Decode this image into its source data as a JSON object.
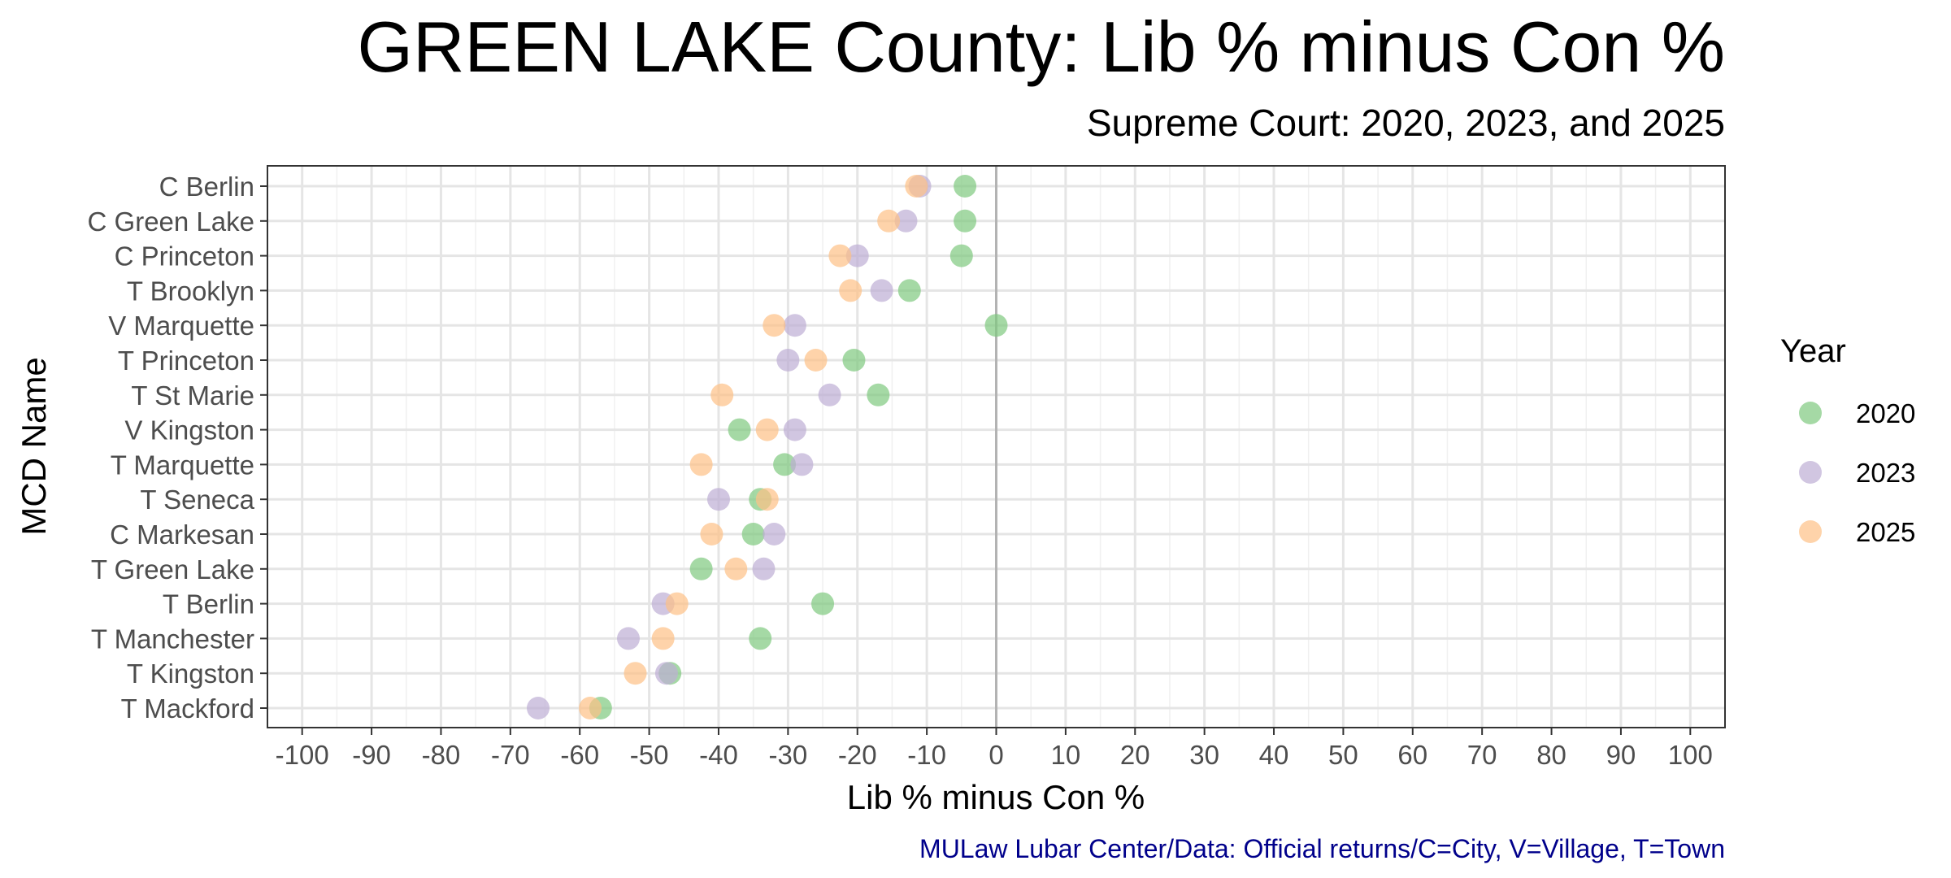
{
  "chart_data": {
    "type": "scatter",
    "title": "GREEN LAKE County: Lib % minus Con %",
    "subtitle": "Supreme Court: 2020, 2023, and 2025",
    "xlabel": "Lib % minus Con %",
    "ylabel": "MCD Name",
    "caption": "MULaw Lubar Center/Data: Official returns/C=City, V=Village, T=Town",
    "caption_color": "#00008B",
    "xlim": [
      -105,
      105
    ],
    "x_ticks": [
      -100,
      -90,
      -80,
      -70,
      -60,
      -50,
      -40,
      -30,
      -20,
      -10,
      0,
      10,
      20,
      30,
      40,
      50,
      60,
      70,
      80,
      90,
      100
    ],
    "x_tick_labels": [
      "-100",
      "-90",
      "-80",
      "-70",
      "-60",
      "-50",
      "-40",
      "-30",
      "-20",
      "-10",
      "0",
      "10",
      "20",
      "30",
      "40",
      "50",
      "60",
      "70",
      "80",
      "90",
      "100"
    ],
    "grid": true,
    "reference_line_x": 0,
    "legend_title": "Year",
    "legend_position": "right",
    "categories": [
      "C Berlin",
      "C Green Lake",
      "C Princeton",
      "T Brooklyn",
      "V Marquette",
      "T Princeton",
      "T St Marie",
      "V Kingston",
      "T Marquette",
      "T Seneca",
      "C Markesan",
      "T Green Lake",
      "T Berlin",
      "T Manchester",
      "T Kingston",
      "T Mackford"
    ],
    "series": [
      {
        "name": "2020",
        "color": "#7FC97F",
        "values": [
          -4.5,
          -4.5,
          -5,
          -12.5,
          0,
          -20.5,
          -17,
          -37,
          -30.5,
          -34,
          -35,
          -42.5,
          -25,
          -34,
          -47,
          -57
        ]
      },
      {
        "name": "2023",
        "color": "#BEAED4",
        "values": [
          -11,
          -13,
          -20,
          -16.5,
          -29,
          -30,
          -24,
          -29,
          -28,
          -40,
          -32,
          -33.5,
          -48,
          -53,
          -47.5,
          -66
        ]
      },
      {
        "name": "2025",
        "color": "#FDC086",
        "values": [
          -11.5,
          -15.5,
          -22.5,
          -21,
          -32,
          -26,
          -39.5,
          -33,
          -42.5,
          -33,
          -41,
          -37.5,
          -46,
          -48,
          -52,
          -58.5
        ]
      }
    ]
  }
}
